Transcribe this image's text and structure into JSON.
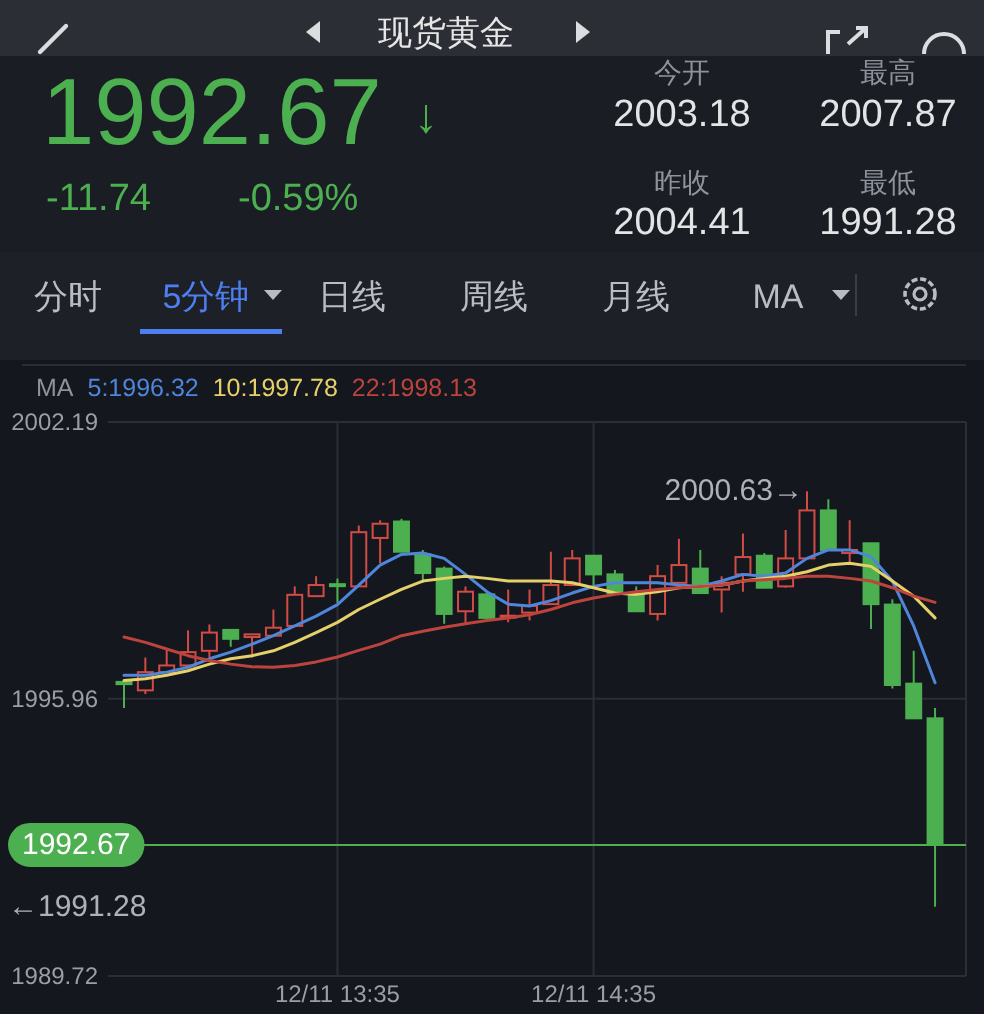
{
  "chart_data": {
    "type": "candlestick",
    "title": "现货黄金",
    "legend_title": "MA",
    "legend": "top left",
    "grid": true,
    "categories": [
      null,
      null,
      null,
      null,
      null,
      null,
      null,
      null,
      null,
      null,
      "12/11 13:35",
      null,
      null,
      null,
      null,
      null,
      null,
      null,
      null,
      null,
      null,
      null,
      "12/11 14:35",
      null,
      null,
      null,
      null,
      null,
      null,
      null,
      null,
      null,
      null,
      null,
      null,
      null,
      null,
      null,
      null
    ],
    "ohlc": [
      [
        1996.34,
        1996.36,
        1995.75,
        1996.29
      ],
      [
        1996.15,
        1996.89,
        1996.07,
        1996.56
      ],
      [
        1996.56,
        1997.08,
        1996.56,
        1996.71
      ],
      [
        1996.71,
        1997.5,
        1996.71,
        1997.01
      ],
      [
        1997.04,
        1997.63,
        1996.89,
        1997.45
      ],
      [
        1997.51,
        1997.51,
        1997.13,
        1997.31
      ],
      [
        1997.35,
        1997.41,
        1996.89,
        1997.41
      ],
      [
        1997.38,
        1997.97,
        1997.38,
        1997.56
      ],
      [
        1997.6,
        1998.49,
        1997.6,
        1998.3
      ],
      [
        1998.27,
        1998.72,
        1998.27,
        1998.52
      ],
      [
        1998.54,
        1998.67,
        1998.12,
        1998.5
      ],
      [
        1998.49,
        1999.86,
        1998.49,
        1999.71
      ],
      [
        1999.58,
        1999.98,
        1999.01,
        1999.9
      ],
      [
        1999.95,
        2000.01,
        1999.27,
        1999.27
      ],
      [
        1999.21,
        1999.31,
        1998.57,
        1998.79
      ],
      [
        1998.89,
        1998.94,
        1997.65,
        1997.87
      ],
      [
        1997.93,
        1998.49,
        1997.65,
        1998.37
      ],
      [
        1998.31,
        1998.37,
        1997.78,
        1997.78
      ],
      [
        1997.8,
        1998.42,
        1997.68,
        1997.83
      ],
      [
        1997.9,
        1998.42,
        1997.72,
        1998.05
      ],
      [
        1998.09,
        1999.27,
        1998.09,
        1998.52
      ],
      [
        1998.52,
        1999.31,
        1998.52,
        1999.12
      ],
      [
        1999.18,
        1999.18,
        1998.52,
        1998.76
      ],
      [
        1998.76,
        1998.86,
        1998.34,
        1998.34
      ],
      [
        1998.31,
        1998.49,
        1997.93,
        1997.93
      ],
      [
        1997.87,
        1998.97,
        1997.72,
        1998.72
      ],
      [
        1998.57,
        1999.56,
        1998.57,
        1998.97
      ],
      [
        1998.89,
        1999.31,
        1998.34,
        1998.34
      ],
      [
        1998.42,
        1998.72,
        1997.9,
        1998.57
      ],
      [
        1998.76,
        1999.68,
        1998.37,
        1999.15
      ],
      [
        1999.18,
        1999.24,
        1998.46,
        1998.46
      ],
      [
        1998.49,
        1999.76,
        1998.46,
        1999.12
      ],
      [
        1999.12,
        2000.63,
        1999.12,
        2000.2
      ],
      [
        2000.2,
        2000.45,
        1999.31,
        1999.31
      ],
      [
        1999.24,
        1999.98,
        1999.01,
        1999.31
      ],
      [
        1999.46,
        1999.46,
        1997.53,
        1998.09
      ],
      [
        1998.08,
        1998.2,
        1996.19,
        1996.27
      ],
      [
        1996.3,
        1997.04,
        1995.52,
        1995.52
      ],
      [
        1995.52,
        1995.75,
        1991.28,
        1992.67
      ]
    ],
    "colors": [
      "#4caf50",
      "#d24b45",
      "#d24b45",
      "#d24b45",
      "#d24b45",
      "#4caf50",
      "#d24b45",
      "#d24b45",
      "#d24b45",
      "#d24b45",
      "#4caf50",
      "#d24b45",
      "#d24b45",
      "#4caf50",
      "#4caf50",
      "#4caf50",
      "#d24b45",
      "#4caf50",
      "#d24b45",
      "#d24b45",
      "#d24b45",
      "#d24b45",
      "#4caf50",
      "#4caf50",
      "#4caf50",
      "#d24b45",
      "#d24b45",
      "#4caf50",
      "#d24b45",
      "#d24b45",
      "#4caf50",
      "#d24b45",
      "#d24b45",
      "#4caf50",
      "#d24b45",
      "#4caf50",
      "#4caf50",
      "#4caf50",
      "#4caf50"
    ],
    "series": [
      {
        "type": "line",
        "name": "5:1996.32",
        "color": "#4f86dc",
        "values": [
          1996.49,
          1996.49,
          1996.56,
          1996.67,
          1996.86,
          1997.01,
          1997.19,
          1997.38,
          1997.6,
          1997.82,
          1998.08,
          1998.52,
          1998.97,
          1999.21,
          1999.24,
          1999.12,
          1998.76,
          1998.37,
          1998.09,
          1998.05,
          1998.17,
          1998.34,
          1998.49,
          1998.57,
          1998.57,
          1998.57,
          1998.52,
          1998.49,
          1998.61,
          1998.76,
          1998.72,
          1998.79,
          1999.12,
          1999.31,
          1999.31,
          1999.16,
          1998.61,
          1997.6,
          1996.32
        ]
      },
      {
        "type": "line",
        "name": "10:1997.78",
        "color": "#e6d06a",
        "values": [
          1996.37,
          1996.41,
          1996.49,
          1996.59,
          1996.74,
          1996.86,
          1996.93,
          1997.04,
          1997.23,
          1997.45,
          1997.68,
          1997.97,
          1998.2,
          1998.42,
          1998.61,
          1998.67,
          1998.72,
          1998.67,
          1998.61,
          1998.61,
          1998.61,
          1998.57,
          1998.46,
          1998.34,
          1998.31,
          1998.37,
          1998.46,
          1998.49,
          1998.52,
          1998.61,
          1998.67,
          1998.72,
          1998.82,
          1998.97,
          1999.01,
          1998.94,
          1998.61,
          1998.27,
          1997.78
        ]
      },
      {
        "type": "line",
        "name": "22:1998.13",
        "color": "#bd433d",
        "values": [
          1997.35,
          1997.23,
          1997.08,
          1996.93,
          1996.82,
          1996.74,
          1996.68,
          1996.67,
          1996.71,
          1996.79,
          1996.9,
          1997.05,
          1997.19,
          1997.38,
          1997.48,
          1997.57,
          1997.65,
          1997.72,
          1997.78,
          1997.85,
          1997.97,
          1998.12,
          1998.23,
          1998.31,
          1998.37,
          1998.42,
          1998.46,
          1998.49,
          1998.52,
          1998.61,
          1998.64,
          1998.67,
          1998.72,
          1998.72,
          1998.67,
          1998.61,
          1998.46,
          1998.27,
          1998.13
        ]
      }
    ],
    "ylim": [
      1989.72,
      2002.19
    ],
    "yticks": [
      1989.72,
      1995.96,
      2002.19
    ],
    "ref_lines": [
      {
        "axis": "y",
        "value": 1992.67,
        "label": "1992.67",
        "color": "#4caf50"
      }
    ],
    "annotations": [
      "1992.67",
      "↓",
      "-11.74",
      "-0.59%",
      "今开",
      "2003.18",
      "最高",
      "2007.87",
      "昨收",
      "2004.41",
      "最低",
      "1991.28",
      "分时",
      "5分钟",
      "日线",
      "周线",
      "月线",
      "MA",
      "2000.63→",
      "←1991.28"
    ]
  }
}
